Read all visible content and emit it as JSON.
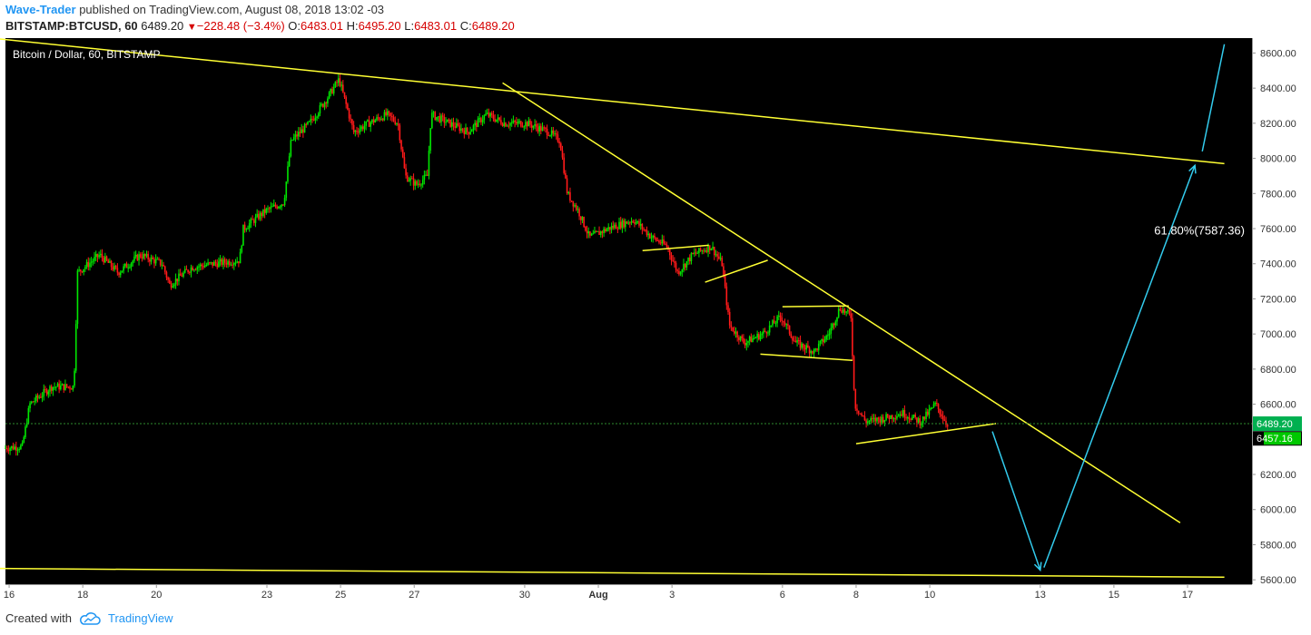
{
  "header": {
    "author": "Wave-Trader",
    "published_text": "published on TradingView.com, August 08, 2018 13:02 -03",
    "symbol": "BITSTAMP:BTCUSD, 60",
    "last": "6489.20",
    "change_icon": "down-triangle-icon",
    "change": "−228.48 (−3.4%)",
    "o_label": "O:",
    "o_value": "6483.01",
    "h_label": "H:",
    "h_value": "6495.20",
    "l_label": "L:",
    "l_value": "6483.01",
    "c_label": "C:",
    "c_value": "6489.20"
  },
  "footer": {
    "created_with": "Created with",
    "brand": "TradingView",
    "logo_icon": "cloud-logo-icon"
  },
  "colors": {
    "background": "#000000",
    "up_candle": "#00e600",
    "down_candle": "#ff1a1a",
    "trendline": "#ffff33",
    "projection_arrow": "#33ccee",
    "price_line": "#2e8b2e",
    "axis_text": "#333333"
  },
  "chart_data": {
    "type": "candlestick",
    "title": "Bitcoin / Dollar, 60, BITSTAMP",
    "x_ticks": [
      {
        "label": "16",
        "day": 16
      },
      {
        "label": "18",
        "day": 18
      },
      {
        "label": "20",
        "day": 20
      },
      {
        "label": "23",
        "day": 23
      },
      {
        "label": "25",
        "day": 25
      },
      {
        "label": "27",
        "day": 27
      },
      {
        "label": "30",
        "day": 30
      },
      {
        "label": "Aug",
        "day": 32
      },
      {
        "label": "3",
        "day": 34
      },
      {
        "label": "6",
        "day": 37
      },
      {
        "label": "8",
        "day": 39
      },
      {
        "label": "10",
        "day": 41
      },
      {
        "label": "13",
        "day": 44
      },
      {
        "label": "15",
        "day": 46
      },
      {
        "label": "17",
        "day": 48
      }
    ],
    "y_ticks": [
      "8600.00",
      "8400.00",
      "8200.00",
      "8000.00",
      "7800.00",
      "7600.00",
      "7400.00",
      "7200.00",
      "7000.00",
      "6800.00",
      "6600.00",
      "6400.00",
      "6200.00",
      "6000.00",
      "5800.00",
      "5600.00"
    ],
    "ylim": [
      5575,
      8685
    ],
    "price_path": [
      [
        15.9,
        6350
      ],
      [
        16.4,
        6360
      ],
      [
        16.6,
        6600
      ],
      [
        17.2,
        6700
      ],
      [
        17.8,
        6700
      ],
      [
        17.9,
        7350
      ],
      [
        18.5,
        7450
      ],
      [
        19.0,
        7350
      ],
      [
        19.6,
        7450
      ],
      [
        20.2,
        7400
      ],
      [
        20.4,
        7280
      ],
      [
        21.0,
        7380
      ],
      [
        21.6,
        7400
      ],
      [
        22.3,
        7420
      ],
      [
        22.4,
        7600
      ],
      [
        23.0,
        7700
      ],
      [
        23.5,
        7750
      ],
      [
        23.7,
        8100
      ],
      [
        24.2,
        8200
      ],
      [
        24.7,
        8350
      ],
      [
        25.0,
        8450
      ],
      [
        25.4,
        8150
      ],
      [
        25.8,
        8200
      ],
      [
        26.3,
        8250
      ],
      [
        26.6,
        8200
      ],
      [
        26.8,
        7900
      ],
      [
        27.1,
        7850
      ],
      [
        27.4,
        7900
      ],
      [
        27.5,
        8250
      ],
      [
        28.0,
        8200
      ],
      [
        28.5,
        8150
      ],
      [
        29.0,
        8250
      ],
      [
        29.5,
        8200
      ],
      [
        30.1,
        8200
      ],
      [
        30.7,
        8150
      ],
      [
        31.0,
        8100
      ],
      [
        31.2,
        7800
      ],
      [
        31.5,
        7700
      ],
      [
        31.8,
        7550
      ],
      [
        32.3,
        7600
      ],
      [
        33.0,
        7650
      ],
      [
        33.5,
        7550
      ],
      [
        33.9,
        7500
      ],
      [
        34.2,
        7350
      ],
      [
        34.6,
        7450
      ],
      [
        35.1,
        7500
      ],
      [
        35.4,
        7400
      ],
      [
        35.6,
        7050
      ],
      [
        36.0,
        6950
      ],
      [
        36.5,
        7000
      ],
      [
        37.0,
        7100
      ],
      [
        37.4,
        6950
      ],
      [
        37.9,
        6900
      ],
      [
        38.3,
        7000
      ],
      [
        38.6,
        7150
      ],
      [
        38.9,
        7100
      ],
      [
        39.0,
        6600
      ],
      [
        39.3,
        6500
      ],
      [
        39.8,
        6520
      ],
      [
        40.3,
        6550
      ],
      [
        40.8,
        6500
      ],
      [
        41.2,
        6600
      ],
      [
        41.5,
        6489
      ]
    ],
    "last_price": 6489.2,
    "price_labels": [
      "6489.20",
      "6457.16"
    ],
    "fib_label": "61.80%(7587.36)",
    "fib_value": 7587.36,
    "trendlines": [
      {
        "from": [
          15.5,
          8685
        ],
        "to": [
          49.0,
          7970
        ]
      },
      {
        "from": [
          29.4,
          8430
        ],
        "to": [
          47.8,
          5925
        ]
      },
      {
        "from": [
          15.5,
          5665
        ],
        "to": [
          49.0,
          5615
        ]
      },
      {
        "from": [
          33.2,
          7475
        ],
        "to": [
          35.0,
          7505
        ]
      },
      {
        "from": [
          34.9,
          7295
        ],
        "to": [
          36.6,
          7420
        ]
      },
      {
        "from": [
          37.0,
          7155
        ],
        "to": [
          38.8,
          7160
        ]
      },
      {
        "from": [
          36.4,
          6885
        ],
        "to": [
          38.9,
          6850
        ]
      },
      {
        "from": [
          39.0,
          6375
        ],
        "to": [
          42.8,
          6490
        ]
      }
    ],
    "projection_arrows": [
      {
        "from": [
          42.7,
          6445
        ],
        "to": [
          44.0,
          5655
        ]
      },
      {
        "from": [
          44.1,
          5670
        ],
        "to": [
          48.2,
          7960
        ]
      },
      {
        "from": [
          48.4,
          8040
        ],
        "to": [
          49.0,
          8650
        ]
      }
    ]
  }
}
